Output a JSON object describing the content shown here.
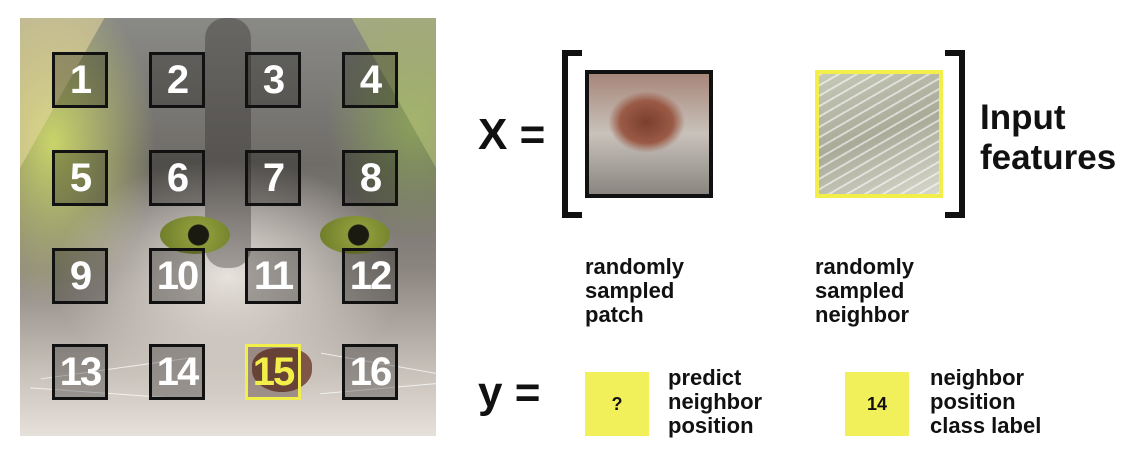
{
  "grid": {
    "cells": [
      "1",
      "2",
      "3",
      "4",
      "5",
      "6",
      "7",
      "8",
      "9",
      "10",
      "11",
      "12",
      "13",
      "14",
      "15",
      "16"
    ],
    "highlighted": "15"
  },
  "equation": {
    "x_label": "X =",
    "y_label": "y =",
    "input_features": [
      "Input",
      "features"
    ]
  },
  "patches": {
    "sampled_patch_caption": [
      "randomly",
      "sampled",
      "patch"
    ],
    "neighbor_caption": [
      "randomly",
      "sampled",
      "neighbor"
    ]
  },
  "targets": {
    "predict_box": "?",
    "predict_caption": [
      "predict",
      "neighbor",
      "position"
    ],
    "label_box": "14",
    "label_caption": [
      "neighbor",
      "position",
      "class label"
    ]
  },
  "colors": {
    "highlight": "#f2ee4a",
    "box_fill": "#f2f05a",
    "text": "#111111"
  }
}
